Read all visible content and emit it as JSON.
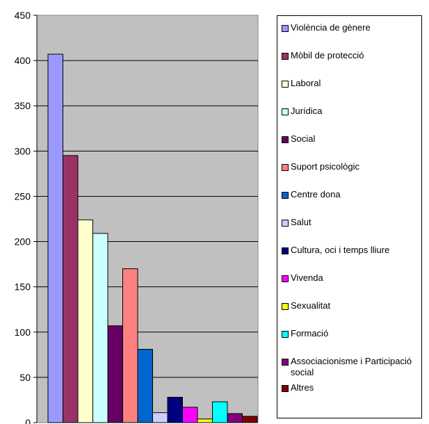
{
  "chart_data": {
    "type": "bar",
    "categories": [
      "Violència de gènere",
      "Mòbil de protecció",
      "Laboral",
      "Jurídica",
      "Social",
      "Suport psicològic",
      "Centre dona",
      "Salut",
      "Cultura, oci i temps lliure",
      "Vivenda",
      "Sexualitat",
      "Formació",
      "Associacionisme i Participació social",
      "Altres"
    ],
    "values": [
      407,
      295,
      224,
      209,
      107,
      170,
      81,
      11,
      28,
      17,
      4,
      23,
      10,
      7
    ],
    "colors": [
      "#9999FF",
      "#993366",
      "#FFFFCC",
      "#CCFFFF",
      "#660066",
      "#FF8080",
      "#0066CC",
      "#CCCCFF",
      "#000080",
      "#FF00FF",
      "#FFFF00",
      "#00FFFF",
      "#800080",
      "#800000"
    ],
    "yticks": [
      "0",
      "50",
      "100",
      "150",
      "200",
      "250",
      "300",
      "350",
      "400",
      "450"
    ],
    "ylim": [
      0,
      450
    ],
    "grid": true,
    "plot_background": "#C0C0C0",
    "legend_position": "right"
  }
}
